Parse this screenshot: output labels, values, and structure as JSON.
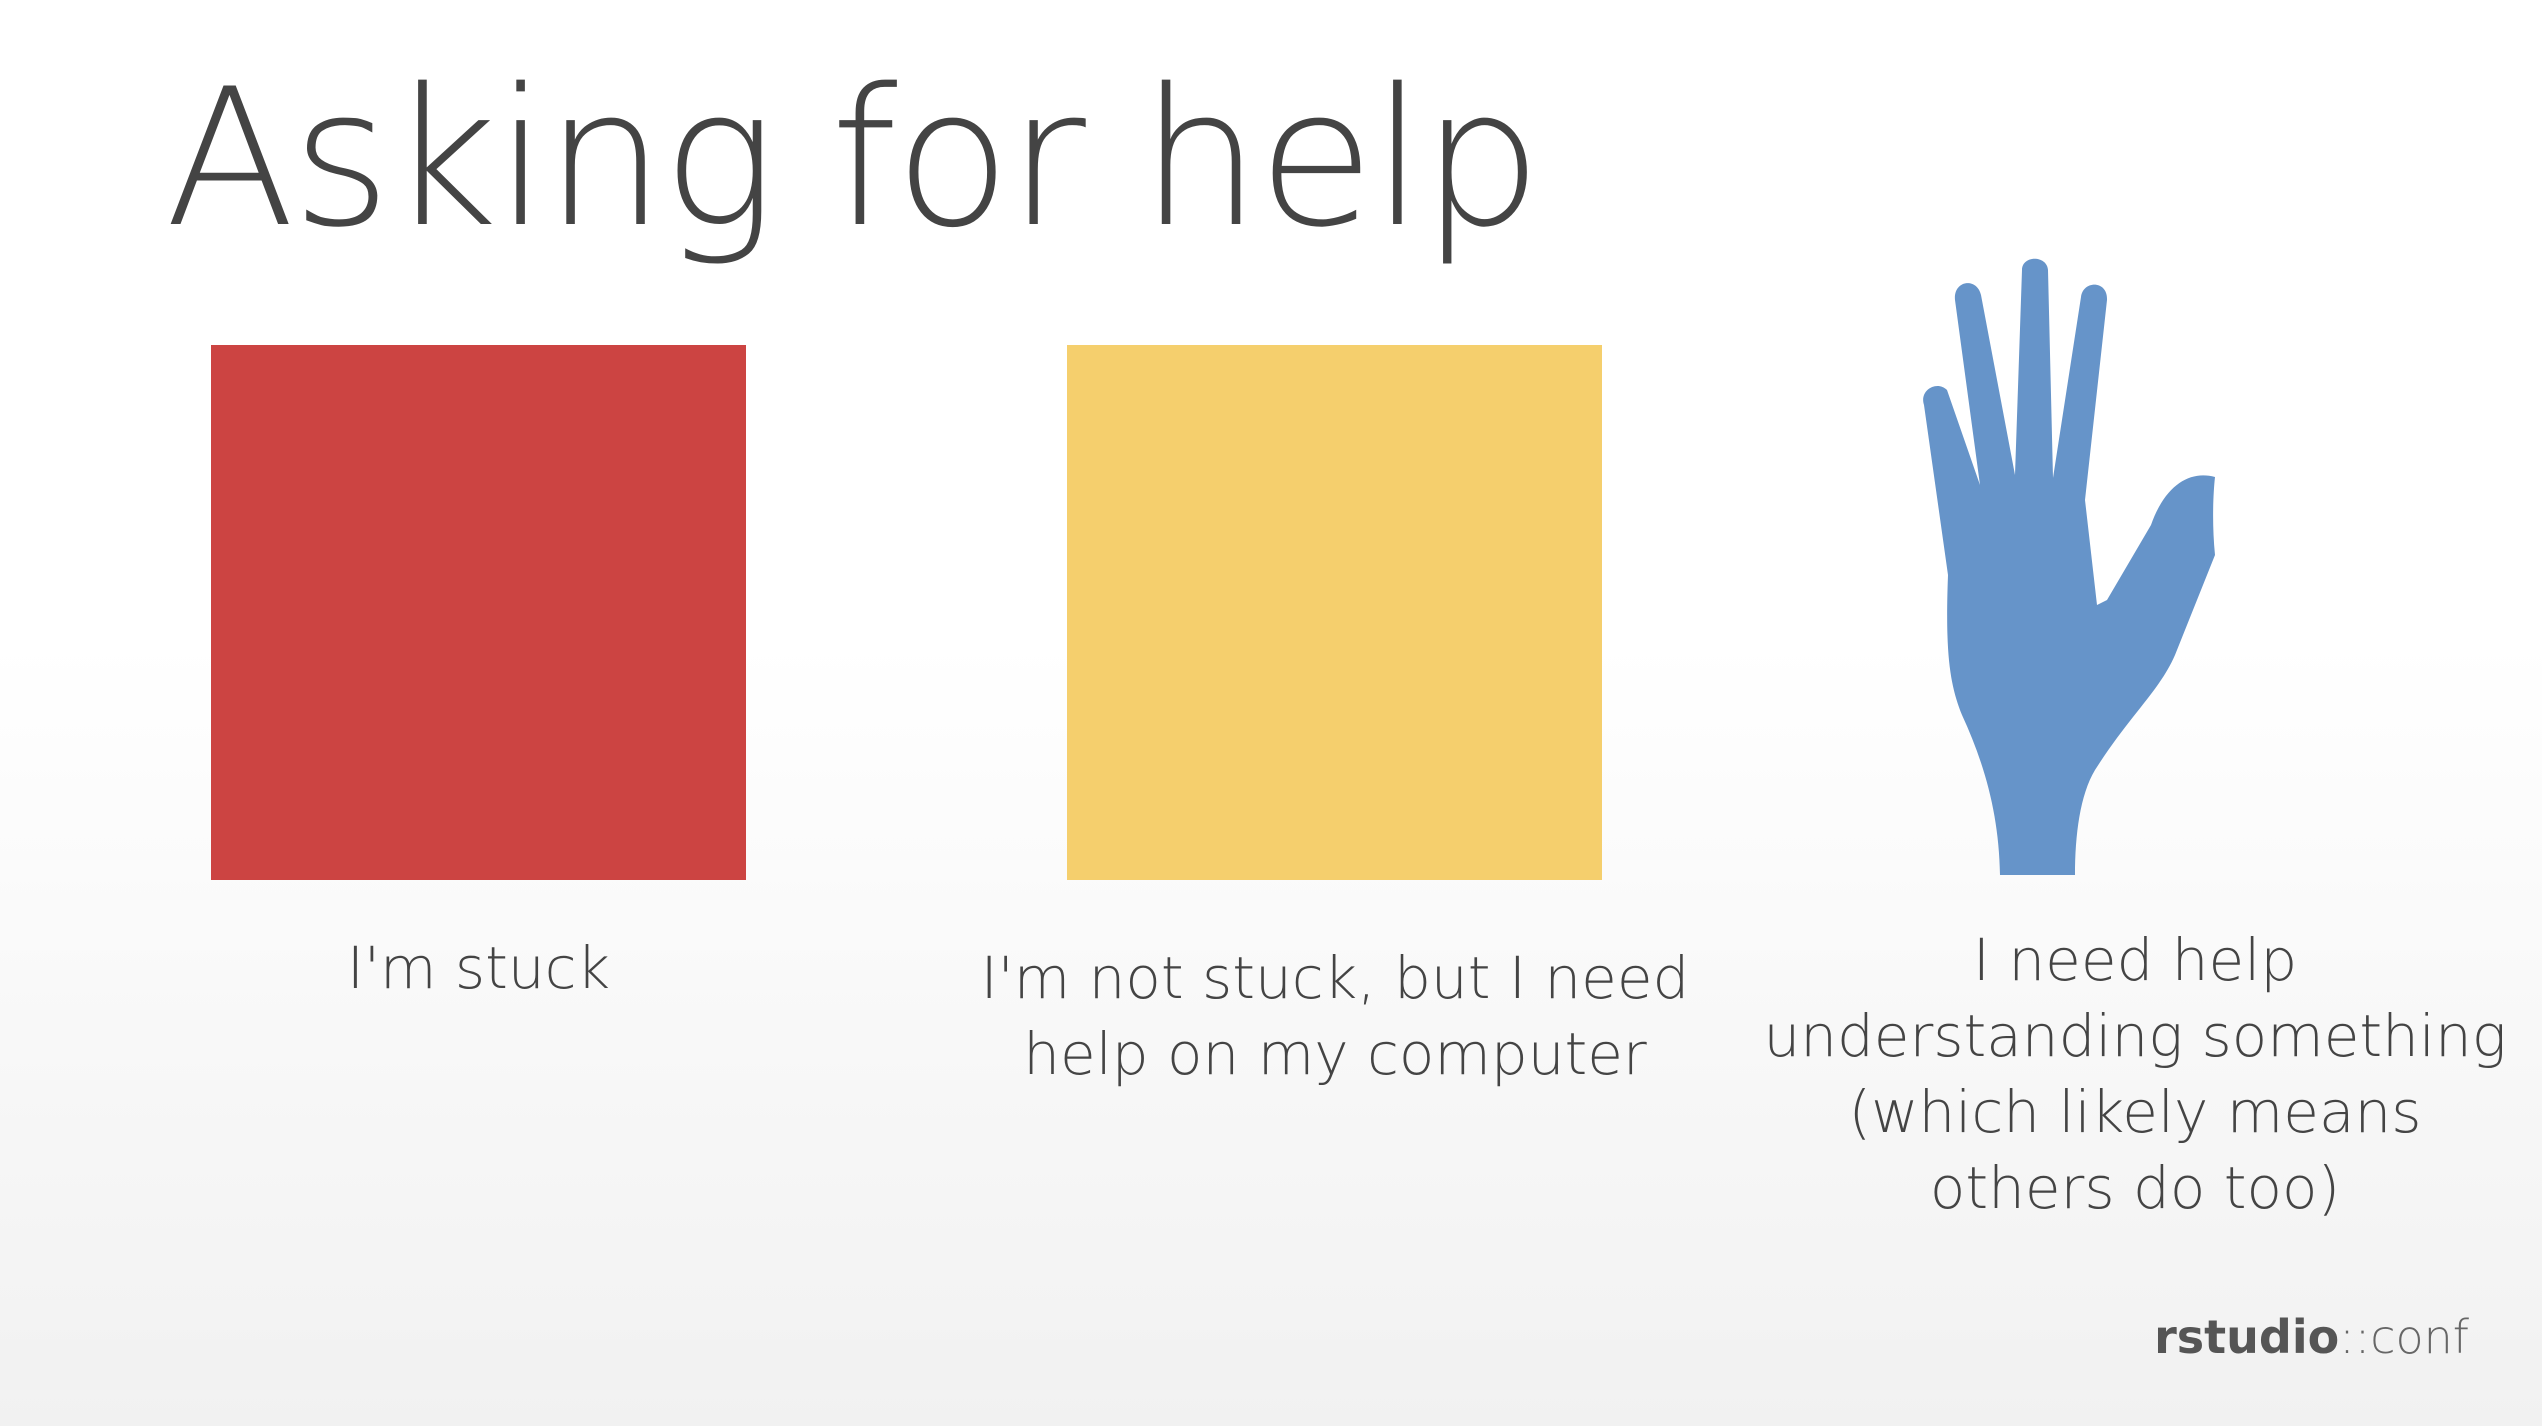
{
  "slide": {
    "title": "Asking for help"
  },
  "cards": [
    {
      "color": "#cc4442",
      "caption": "I'm stuck"
    },
    {
      "color": "#f5cf6d",
      "caption": "I'm not stuck, but I need help on my computer"
    }
  ],
  "hand": {
    "icon": "raised-hand-icon",
    "color": "#6694c9",
    "caption": "I need help understanding something (which likely means others do too)"
  },
  "brand": {
    "bold": "rstudio",
    "light": "::conf"
  }
}
